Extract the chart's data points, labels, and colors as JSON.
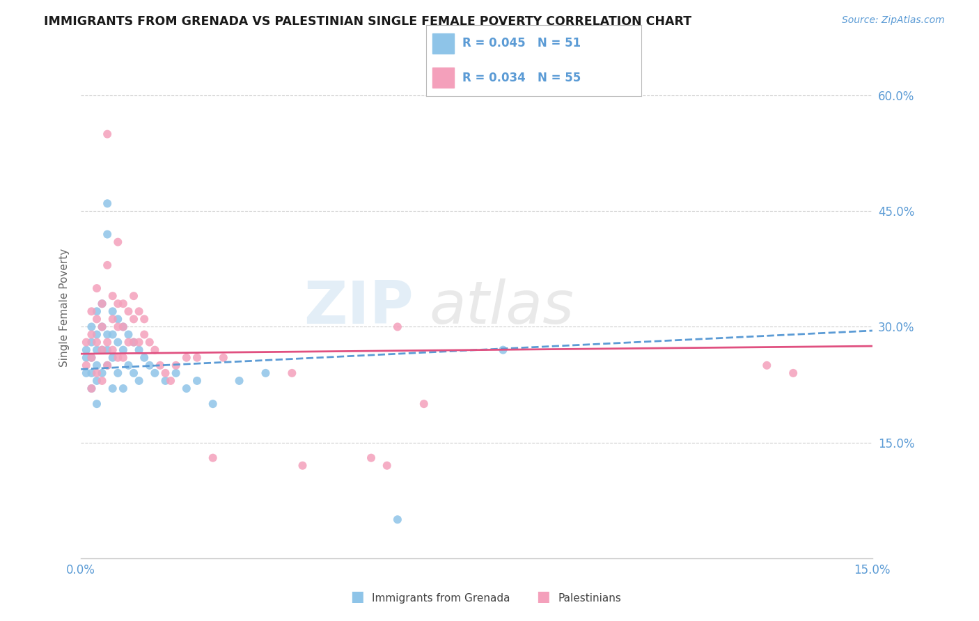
{
  "title": "IMMIGRANTS FROM GRENADA VS PALESTINIAN SINGLE FEMALE POVERTY CORRELATION CHART",
  "source": "Source: ZipAtlas.com",
  "ylabel": "Single Female Poverty",
  "xlim": [
    0.0,
    0.15
  ],
  "ylim": [
    0.0,
    0.65
  ],
  "xtick_positions": [
    0.0,
    0.05,
    0.1,
    0.15
  ],
  "xtick_labels": [
    "0.0%",
    "",
    "",
    "15.0%"
  ],
  "ytick_labels": [
    "15.0%",
    "30.0%",
    "45.0%",
    "60.0%"
  ],
  "ytick_positions": [
    0.15,
    0.3,
    0.45,
    0.6
  ],
  "color_blue": "#8ec4e8",
  "color_pink": "#f4a0bb",
  "line_blue": "#5b9bd5",
  "line_pink": "#e05080",
  "legend_R_blue": "R = 0.045",
  "legend_N_blue": "N = 51",
  "legend_R_pink": "R = 0.034",
  "legend_N_pink": "N = 55",
  "title_color": "#1a1a1a",
  "axis_color": "#5b9bd5",
  "background_color": "#ffffff",
  "grid_color": "#c8c8c8",
  "blue_scatter_x": [
    0.001,
    0.001,
    0.001,
    0.002,
    0.002,
    0.002,
    0.002,
    0.002,
    0.003,
    0.003,
    0.003,
    0.003,
    0.003,
    0.003,
    0.004,
    0.004,
    0.004,
    0.004,
    0.005,
    0.005,
    0.005,
    0.005,
    0.005,
    0.006,
    0.006,
    0.006,
    0.006,
    0.007,
    0.007,
    0.007,
    0.008,
    0.008,
    0.008,
    0.009,
    0.009,
    0.01,
    0.01,
    0.011,
    0.011,
    0.012,
    0.013,
    0.014,
    0.016,
    0.018,
    0.02,
    0.022,
    0.025,
    0.03,
    0.035,
    0.06,
    0.08
  ],
  "blue_scatter_y": [
    0.27,
    0.26,
    0.24,
    0.3,
    0.28,
    0.26,
    0.24,
    0.22,
    0.32,
    0.29,
    0.27,
    0.25,
    0.23,
    0.2,
    0.33,
    0.3,
    0.27,
    0.24,
    0.46,
    0.42,
    0.29,
    0.27,
    0.25,
    0.32,
    0.29,
    0.26,
    0.22,
    0.31,
    0.28,
    0.24,
    0.3,
    0.27,
    0.22,
    0.29,
    0.25,
    0.28,
    0.24,
    0.27,
    0.23,
    0.26,
    0.25,
    0.24,
    0.23,
    0.24,
    0.22,
    0.23,
    0.2,
    0.23,
    0.24,
    0.05,
    0.27
  ],
  "pink_scatter_x": [
    0.001,
    0.001,
    0.002,
    0.002,
    0.002,
    0.002,
    0.003,
    0.003,
    0.003,
    0.003,
    0.004,
    0.004,
    0.004,
    0.004,
    0.005,
    0.005,
    0.005,
    0.005,
    0.006,
    0.006,
    0.006,
    0.007,
    0.007,
    0.007,
    0.007,
    0.008,
    0.008,
    0.008,
    0.009,
    0.009,
    0.01,
    0.01,
    0.01,
    0.011,
    0.011,
    0.012,
    0.012,
    0.013,
    0.014,
    0.015,
    0.016,
    0.017,
    0.018,
    0.02,
    0.022,
    0.025,
    0.027,
    0.04,
    0.042,
    0.055,
    0.058,
    0.06,
    0.065,
    0.13,
    0.135
  ],
  "pink_scatter_y": [
    0.28,
    0.25,
    0.32,
    0.29,
    0.26,
    0.22,
    0.35,
    0.31,
    0.28,
    0.24,
    0.33,
    0.3,
    0.27,
    0.23,
    0.55,
    0.38,
    0.28,
    0.25,
    0.34,
    0.31,
    0.27,
    0.41,
    0.33,
    0.3,
    0.26,
    0.33,
    0.3,
    0.26,
    0.32,
    0.28,
    0.34,
    0.31,
    0.28,
    0.32,
    0.28,
    0.31,
    0.29,
    0.28,
    0.27,
    0.25,
    0.24,
    0.23,
    0.25,
    0.26,
    0.26,
    0.13,
    0.26,
    0.24,
    0.12,
    0.13,
    0.12,
    0.3,
    0.2,
    0.25,
    0.24
  ],
  "trend_blue_x0": 0.0,
  "trend_blue_y0": 0.245,
  "trend_blue_x1": 0.15,
  "trend_blue_y1": 0.295,
  "trend_pink_x0": 0.0,
  "trend_pink_y0": 0.265,
  "trend_pink_x1": 0.15,
  "trend_pink_y1": 0.275
}
